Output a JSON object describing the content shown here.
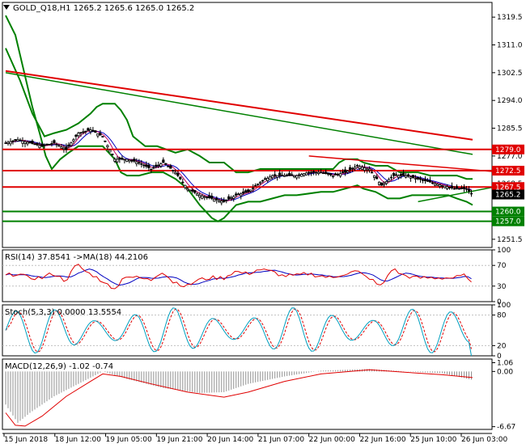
{
  "chart_data": [
    {
      "panel": "price",
      "type": "candlestick",
      "symbol_header": "GOLD_Q18,H1  1265.2 1265.6 1265.0 1265.2",
      "ylim": [
        1249.0,
        1324.0
      ],
      "y_ticks": [
        "1319.5",
        "1311.0",
        "1302.5",
        "1294.0",
        "1285.5",
        "1277.0",
        "1268.5",
        "1251.5"
      ],
      "x_ticks": [
        "15 Jun 2018",
        "18 Jun 12:00",
        "19 Jun 05:00",
        "19 Jun 21:00",
        "20 Jun 14:00",
        "21 Jun 07:00",
        "22 Jun 00:00",
        "22 Jun 16:00",
        "25 Jun 10:00",
        "26 Jun 03:00"
      ],
      "n_bars": 200,
      "close_path": [
        [
          0,
          1281
        ],
        [
          10,
          1282
        ],
        [
          20,
          1281
        ],
        [
          30,
          1280
        ],
        [
          40,
          1281
        ],
        [
          50,
          1279
        ],
        [
          60,
          1284
        ],
        [
          70,
          1285
        ],
        [
          80,
          1283
        ],
        [
          90,
          1276
        ],
        [
          100,
          1276
        ],
        [
          110,
          1275
        ],
        [
          120,
          1273
        ],
        [
          130,
          1275
        ],
        [
          140,
          1272
        ],
        [
          150,
          1267
        ],
        [
          160,
          1265
        ],
        [
          170,
          1264
        ],
        [
          180,
          1263
        ],
        [
          190,
          1265
        ],
        [
          200,
          1266
        ],
        [
          210,
          1269
        ],
        [
          220,
          1271
        ],
        [
          230,
          1271
        ],
        [
          240,
          1271
        ],
        [
          250,
          1272
        ],
        [
          260,
          1272
        ],
        [
          270,
          1271
        ],
        [
          280,
          1272
        ],
        [
          290,
          1274
        ],
        [
          300,
          1273
        ],
        [
          310,
          1268
        ],
        [
          320,
          1271
        ],
        [
          330,
          1271
        ],
        [
          340,
          1270
        ],
        [
          350,
          1269
        ],
        [
          360,
          1268
        ],
        [
          370,
          1267
        ],
        [
          380,
          1267
        ],
        [
          385,
          1265.2
        ]
      ],
      "current_price": "1265.2",
      "horizontal_levels": [
        {
          "value": "1279.0",
          "color": "#e00000"
        },
        {
          "value": "1272.5",
          "color": "#e00000"
        },
        {
          "value": "1267.5",
          "color": "#e00000"
        },
        {
          "value": "1260.0",
          "color": "#008000"
        },
        {
          "value": "1257.0",
          "color": "#008000"
        }
      ],
      "trendlines": {
        "red_channel": [
          [
            0,
            1303
          ],
          [
            385,
            1282
          ]
        ],
        "green_channel": [
          [
            0,
            1302.5
          ],
          [
            385,
            1277.5
          ]
        ],
        "red_lower": [
          [
            250,
            1277
          ],
          [
            410,
            1272
          ]
        ],
        "green_lower": [
          [
            340,
            1263
          ],
          [
            410,
            1268
          ]
        ]
      },
      "bollinger_upper": [
        [
          0,
          1310
        ],
        [
          12,
          1300
        ],
        [
          22,
          1290
        ],
        [
          32,
          1283
        ],
        [
          40,
          1284
        ],
        [
          50,
          1285
        ],
        [
          60,
          1287
        ],
        [
          70,
          1290
        ],
        [
          75,
          1292
        ],
        [
          80,
          1293
        ],
        [
          90,
          1293
        ],
        [
          95,
          1291
        ],
        [
          100,
          1288
        ],
        [
          105,
          1283
        ],
        [
          115,
          1280
        ],
        [
          125,
          1280
        ],
        [
          140,
          1278
        ],
        [
          150,
          1279
        ],
        [
          160,
          1277
        ],
        [
          168,
          1275
        ],
        [
          180,
          1275
        ],
        [
          190,
          1272
        ],
        [
          200,
          1272
        ],
        [
          210,
          1273
        ],
        [
          220,
          1273
        ],
        [
          230,
          1273
        ],
        [
          245,
          1273
        ],
        [
          260,
          1273
        ],
        [
          270,
          1273
        ],
        [
          275,
          1275
        ],
        [
          280,
          1276
        ],
        [
          290,
          1276
        ],
        [
          295,
          1275
        ],
        [
          305,
          1274
        ],
        [
          315,
          1274
        ],
        [
          325,
          1272
        ],
        [
          340,
          1272
        ],
        [
          350,
          1271
        ],
        [
          360,
          1271
        ],
        [
          372,
          1271
        ],
        [
          380,
          1270
        ],
        [
          385,
          1270
        ]
      ],
      "bollinger_lower": [
        [
          0,
          1320
        ],
        [
          8,
          1314
        ],
        [
          15,
          1303
        ],
        [
          22,
          1292
        ],
        [
          28,
          1284
        ],
        [
          33,
          1277
        ],
        [
          38,
          1273
        ],
        [
          45,
          1276
        ],
        [
          52,
          1278
        ],
        [
          60,
          1280
        ],
        [
          70,
          1280
        ],
        [
          80,
          1280
        ],
        [
          90,
          1276
        ],
        [
          95,
          1272
        ],
        [
          100,
          1271
        ],
        [
          110,
          1271
        ],
        [
          120,
          1272
        ],
        [
          130,
          1272
        ],
        [
          140,
          1270
        ],
        [
          150,
          1267
        ],
        [
          160,
          1262
        ],
        [
          165,
          1260
        ],
        [
          170,
          1258
        ],
        [
          175,
          1257
        ],
        [
          180,
          1258
        ],
        [
          190,
          1262
        ],
        [
          200,
          1263
        ],
        [
          210,
          1263
        ],
        [
          220,
          1264
        ],
        [
          230,
          1265
        ],
        [
          240,
          1265
        ],
        [
          260,
          1266
        ],
        [
          270,
          1266
        ],
        [
          280,
          1267
        ],
        [
          290,
          1268
        ],
        [
          295,
          1267
        ],
        [
          305,
          1266
        ],
        [
          315,
          1264
        ],
        [
          325,
          1264
        ],
        [
          335,
          1265
        ],
        [
          345,
          1265
        ],
        [
          355,
          1265
        ],
        [
          365,
          1265
        ],
        [
          372,
          1264
        ],
        [
          380,
          1263
        ],
        [
          385,
          1262
        ]
      ],
      "colors": {
        "up": "#000000",
        "down": "#000000",
        "bollinger": "#008000",
        "red_line": "#e00000",
        "green_line": "#008000",
        "ma_short": "#c00060",
        "ma_mid": "#0000c0"
      }
    },
    {
      "panel": "rsi",
      "type": "line",
      "header": "RSI(14) 37.8541  ->MA(18) 44.2106",
      "ylim": [
        0,
        100
      ],
      "y_ticks": [
        "100",
        "70",
        "30",
        "0"
      ],
      "current": "37.8541",
      "ma": "44.2106",
      "colors": {
        "rsi": "#e00000",
        "ma": "#0000c0"
      }
    },
    {
      "panel": "stochastic",
      "type": "line",
      "header": "Stoch(5,3,3) 0.0000 13.5554",
      "ylim": [
        0,
        100
      ],
      "y_ticks": [
        "100",
        "80",
        "20",
        "0"
      ],
      "k": "0.0000",
      "d": "13.5554",
      "colors": {
        "k": "#00a0c0",
        "d": "#e00000"
      }
    },
    {
      "panel": "macd",
      "type": "bar",
      "header": "MACD(12,26,9) -1.02 -0.74",
      "ylim": [
        -7.0,
        1.5
      ],
      "y_ticks": [
        "1.06",
        "0.00",
        "-6.67"
      ],
      "macd": "-1.02",
      "signal": "-0.74",
      "signal_path": [
        [
          0,
          -5.0
        ],
        [
          8,
          -6.5
        ],
        [
          16,
          -6.6
        ],
        [
          30,
          -5.4
        ],
        [
          50,
          -3.0
        ],
        [
          70,
          -1.2
        ],
        [
          80,
          -0.3
        ],
        [
          95,
          -0.6
        ],
        [
          120,
          -1.5
        ],
        [
          150,
          -2.5
        ],
        [
          180,
          -3.1
        ],
        [
          200,
          -2.5
        ],
        [
          230,
          -1.2
        ],
        [
          260,
          -0.3
        ],
        [
          300,
          0.2
        ],
        [
          330,
          -0.1
        ],
        [
          360,
          -0.4
        ],
        [
          385,
          -0.74
        ]
      ],
      "hist_path": [
        [
          0,
          -4.0
        ],
        [
          10,
          -6.2
        ],
        [
          20,
          -5.0
        ],
        [
          40,
          -3.0
        ],
        [
          60,
          -1.5
        ],
        [
          80,
          0.0
        ],
        [
          100,
          -0.9
        ],
        [
          130,
          -2.0
        ],
        [
          160,
          -2.6
        ],
        [
          180,
          -2.5
        ],
        [
          200,
          -1.5
        ],
        [
          230,
          -0.6
        ],
        [
          260,
          0.1
        ],
        [
          300,
          0.3
        ],
        [
          330,
          0.0
        ],
        [
          360,
          -0.2
        ],
        [
          385,
          -1.02
        ]
      ],
      "colors": {
        "signal": "#e00000",
        "hist": "#909090"
      }
    }
  ]
}
